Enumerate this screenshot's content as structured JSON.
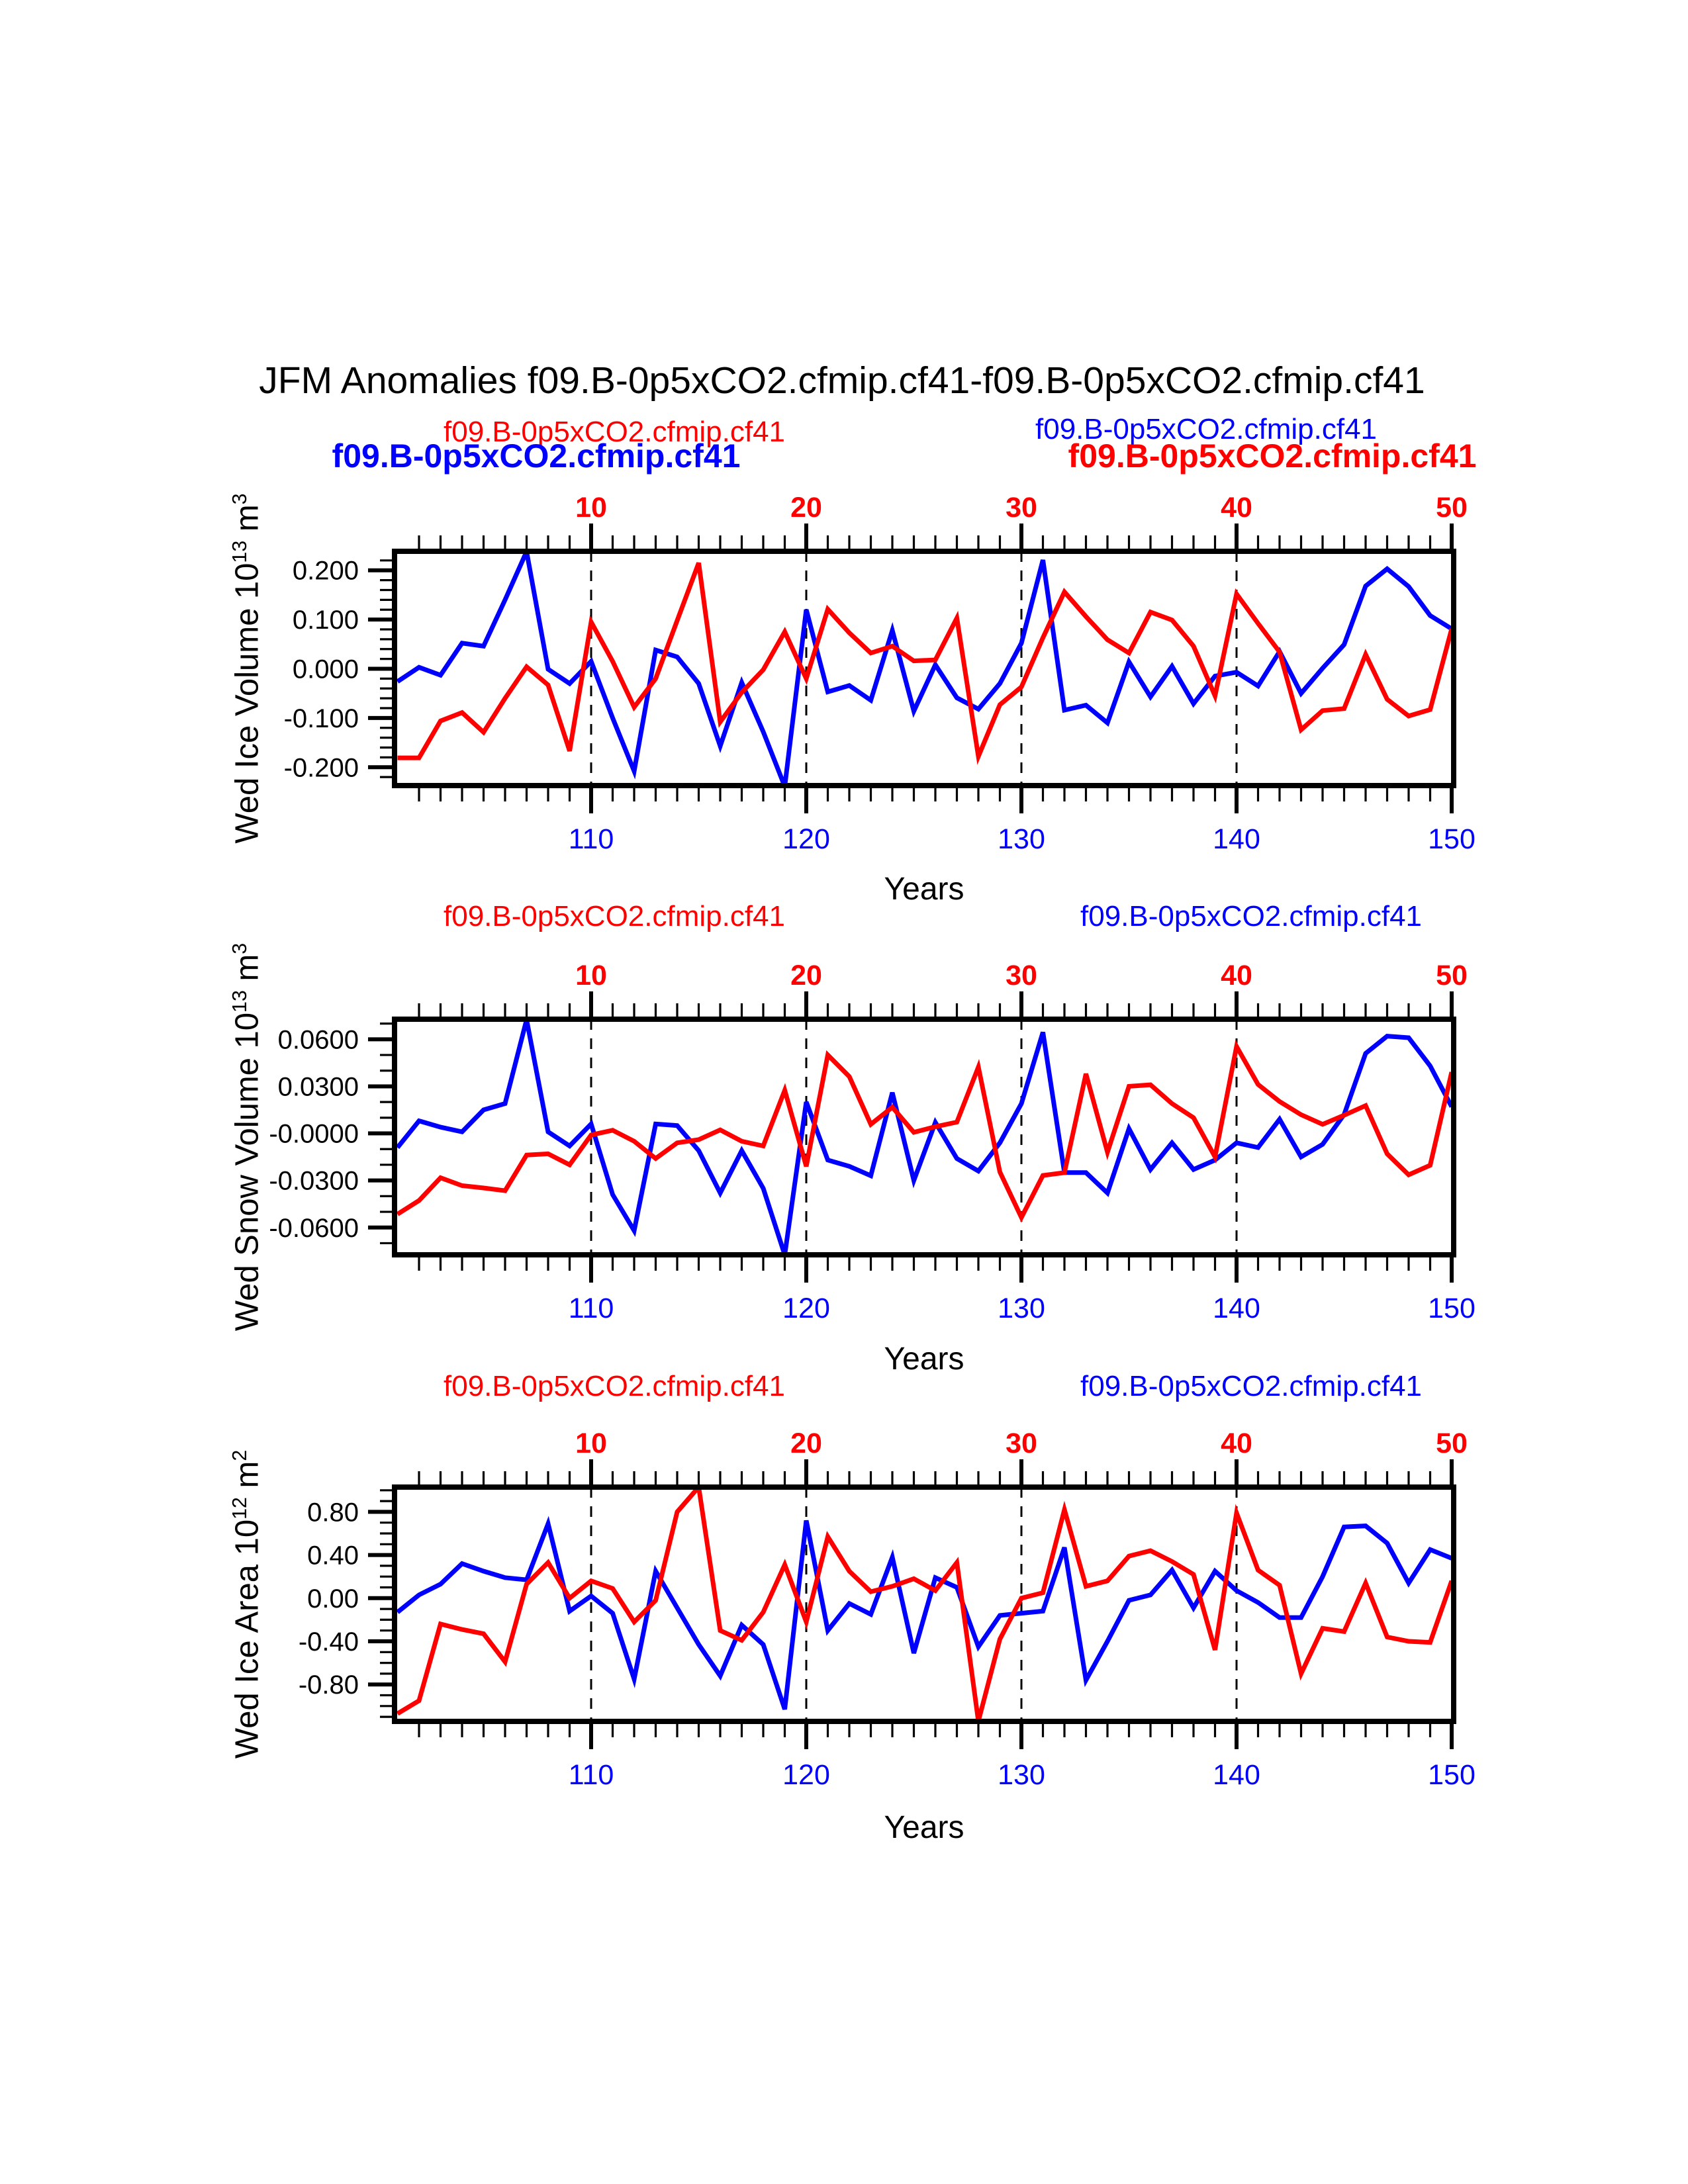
{
  "title": "JFM Anomalies f09.B-0p5xCO2.cfmip.cf41-f09.B-0p5xCO2.cfmip.cf41",
  "series_label": "f09.B-0p5xCO2.cfmip.cf41",
  "xlabel": "Years",
  "colors": {
    "red": "#ff0000",
    "blue": "#0000ff",
    "black": "#000000"
  },
  "x_axis": {
    "label": "Years",
    "x_start": 101,
    "x_end": 150,
    "bottom_tick_labels": [
      "110",
      "120",
      "130",
      "140",
      "150"
    ],
    "top_tick_labels": [
      "10",
      "20",
      "30",
      "40",
      "50"
    ],
    "major_tick_years": [
      110,
      120,
      130,
      140,
      150
    ],
    "dashed_grid_years": [
      110,
      120,
      130,
      140
    ],
    "minor_tick_step": 1
  },
  "chart_data": [
    {
      "type": "line",
      "ylabel": "Wed Ice Volume 10^13 m^3",
      "ylabel_parts": [
        {
          "t": "Wed Ice Volume 10"
        },
        {
          "t": "13",
          "sup": true
        },
        {
          "t": " m"
        },
        {
          "t": "3",
          "sup": true
        }
      ],
      "ylim": [
        -0.2373,
        0.2386
      ],
      "ytick_values": [
        0.2,
        0.1,
        0.0,
        -0.1,
        -0.2
      ],
      "ytick_labels": [
        "0.200",
        "0.100",
        "0.000",
        "-0.100",
        "-0.200"
      ],
      "y_minor_step": 0.02,
      "legend_left": "f09.B-0p5xCO2.cfmip.cf41",
      "legend_right": "f09.B-0p5xCO2.cfmip.cf41",
      "series": [
        {
          "name": "f09.B-0p5xCO2.cfmip.cf41",
          "color": "blue",
          "x_start": 101,
          "values": [
            -0.026,
            0.003,
            -0.013,
            0.052,
            0.046,
            0.14,
            0.238,
            -0.001,
            -0.03,
            0.015,
            -0.1,
            -0.208,
            0.038,
            0.024,
            -0.03,
            -0.157,
            -0.028,
            -0.128,
            -0.239,
            0.12,
            -0.047,
            -0.034,
            -0.064,
            0.078,
            -0.086,
            0.008,
            -0.059,
            -0.082,
            -0.03,
            0.052,
            0.221,
            -0.084,
            -0.074,
            -0.11,
            0.014,
            -0.057,
            0.005,
            -0.071,
            -0.015,
            -0.007,
            -0.035,
            0.035,
            -0.05,
            0.001,
            0.049,
            0.168,
            0.203,
            0.167,
            0.108,
            0.081
          ]
        },
        {
          "name": "f09.B-0p5xCO2.cfmip.cf41",
          "color": "red",
          "x_start": 101,
          "values": [
            -0.181,
            -0.181,
            -0.106,
            -0.089,
            -0.129,
            -0.06,
            0.004,
            -0.033,
            -0.167,
            0.095,
            0.015,
            -0.078,
            -0.02,
            0.098,
            0.215,
            -0.108,
            -0.048,
            -0.002,
            0.075,
            -0.02,
            0.121,
            0.073,
            0.032,
            0.046,
            0.016,
            0.018,
            0.103,
            -0.178,
            -0.073,
            -0.037,
            0.063,
            0.156,
            0.106,
            0.059,
            0.032,
            0.115,
            0.099,
            0.046,
            -0.055,
            0.152,
            0.092,
            0.034,
            -0.124,
            -0.085,
            -0.081,
            0.029,
            -0.062,
            -0.096,
            -0.083,
            0.081
          ]
        }
      ]
    },
    {
      "type": "line",
      "ylabel": "Wed Snow Volume 10^13 m^3",
      "ylabel_parts": [
        {
          "t": "Wed Snow Volume 10"
        },
        {
          "t": "13",
          "sup": true
        },
        {
          "t": " m"
        },
        {
          "t": "3",
          "sup": true
        }
      ],
      "ylim": [
        -0.0774,
        0.0728
      ],
      "ytick_values": [
        0.06,
        0.03,
        0.0,
        -0.03,
        -0.06
      ],
      "ytick_labels": [
        "0.0600",
        "0.0300",
        "-0.0000",
        "-0.0300",
        "-0.0600"
      ],
      "y_minor_step": 0.01,
      "legend_left": "f09.B-0p5xCO2.cfmip.cf41",
      "legend_right": "f09.B-0p5xCO2.cfmip.cf41",
      "series": [
        {
          "name": "f09.B-0p5xCO2.cfmip.cf41",
          "color": "blue",
          "x_start": 101,
          "values": [
            -0.009,
            0.008,
            0.004,
            0.001,
            0.015,
            0.019,
            0.0725,
            0.001,
            -0.008,
            0.006,
            -0.039,
            -0.062,
            0.006,
            0.005,
            -0.011,
            -0.038,
            -0.011,
            -0.035,
            -0.0775,
            0.02,
            -0.017,
            -0.021,
            -0.027,
            0.026,
            -0.03,
            0.007,
            -0.016,
            -0.024,
            -0.006,
            0.019,
            0.0645,
            -0.025,
            -0.025,
            -0.038,
            0.003,
            -0.023,
            -0.006,
            -0.023,
            -0.017,
            -0.006,
            -0.009,
            0.009,
            -0.015,
            -0.007,
            0.012,
            0.051,
            0.062,
            0.061,
            0.043,
            0.017
          ]
        },
        {
          "name": "f09.B-0p5xCO2.cfmip.cf41",
          "color": "red",
          "x_start": 101,
          "values": [
            -0.0515,
            -0.0428,
            -0.0283,
            -0.0333,
            -0.0348,
            -0.0365,
            -0.0138,
            -0.013,
            -0.02,
            -0.001,
            0.002,
            -0.005,
            -0.016,
            -0.006,
            -0.004,
            0.0022,
            -0.005,
            -0.008,
            0.0275,
            -0.021,
            0.05,
            0.0362,
            0.0058,
            0.0167,
            0.0007,
            0.0043,
            0.0072,
            0.0423,
            -0.0246,
            -0.0536,
            -0.0268,
            -0.025,
            0.038,
            -0.012,
            0.03,
            0.031,
            0.019,
            0.01,
            -0.015,
            0.0554,
            0.0312,
            0.0203,
            0.0119,
            0.0058,
            0.0116,
            0.0177,
            -0.013,
            -0.0264,
            -0.0203,
            0.0391
          ]
        }
      ]
    },
    {
      "type": "line",
      "ylabel": "Wed Ice Area 10^12 m^2",
      "ylabel_parts": [
        {
          "t": "Wed Ice Area 10"
        },
        {
          "t": "12",
          "sup": true
        },
        {
          "t": " m"
        },
        {
          "t": "2",
          "sup": true
        }
      ],
      "ylim": [
        -1.1423,
        1.0294
      ],
      "ytick_values": [
        0.8,
        0.4,
        0.0,
        -0.4,
        -0.8
      ],
      "ytick_labels": [
        "0.80",
        "0.40",
        "0.00",
        "-0.40",
        "-0.80"
      ],
      "y_minor_step": 0.1,
      "legend_left": "f09.B-0p5xCO2.cfmip.cf41",
      "legend_right": "f09.B-0p5xCO2.cfmip.cf41",
      "series": [
        {
          "name": "f09.B-0p5xCO2.cfmip.cf41",
          "color": "blue",
          "x_start": 101,
          "values": [
            -0.13,
            0.03,
            0.13,
            0.32,
            0.25,
            0.19,
            0.17,
            0.69,
            -0.12,
            0.02,
            -0.14,
            -0.75,
            0.25,
            -0.09,
            -0.43,
            -0.72,
            -0.25,
            -0.43,
            -1.03,
            0.72,
            -0.3,
            -0.05,
            -0.15,
            0.38,
            -0.51,
            0.19,
            0.1,
            -0.45,
            -0.16,
            -0.14,
            -0.12,
            0.47,
            -0.76,
            -0.4,
            -0.02,
            0.03,
            0.26,
            -0.09,
            0.25,
            0.07,
            -0.04,
            -0.18,
            -0.18,
            0.2,
            0.66,
            0.67,
            0.51,
            0.14,
            0.45,
            0.37
          ]
        },
        {
          "name": "f09.B-0p5xCO2.cfmip.cf41",
          "color": "red",
          "x_start": 101,
          "values": [
            -1.07,
            -0.95,
            -0.24,
            -0.29,
            -0.33,
            -0.59,
            0.13,
            0.33,
            0.0,
            0.16,
            0.09,
            -0.22,
            -0.02,
            0.8,
            1.03,
            -0.3,
            -0.39,
            -0.13,
            0.31,
            -0.22,
            0.57,
            0.25,
            0.06,
            0.11,
            0.18,
            0.07,
            0.33,
            -1.14,
            -0.38,
            0.0,
            0.05,
            0.82,
            0.11,
            0.16,
            0.39,
            0.44,
            0.34,
            0.22,
            -0.48,
            0.79,
            0.26,
            0.12,
            -0.7,
            -0.28,
            -0.31,
            0.14,
            -0.36,
            -0.4,
            -0.41,
            0.16
          ]
        }
      ]
    }
  ]
}
